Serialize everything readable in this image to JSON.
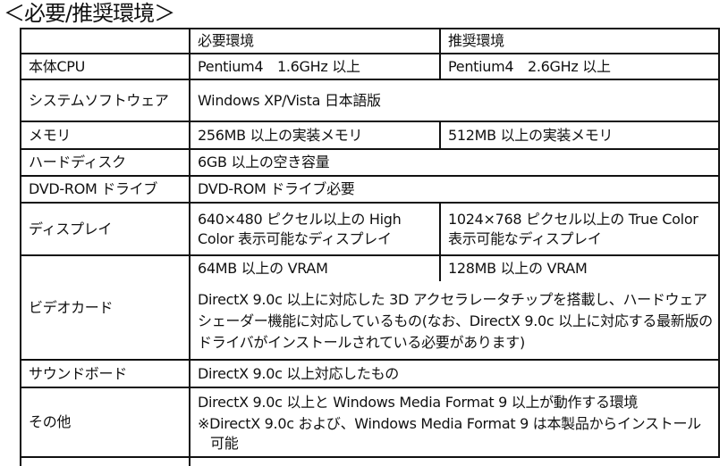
{
  "title": "＜必要/推奨環境＞",
  "headers": [
    "",
    "必要環境",
    "推奨環境"
  ],
  "rows": {
    "cpu": {
      "label": "本体CPU",
      "required": "Pentium4　1.6GHz 以上",
      "recommended": "Pentium4　2.6GHz 以上"
    },
    "os": {
      "label": "システムソフトウェア",
      "value": "Windows XP/Vista 日本語版"
    },
    "memory": {
      "label": "メモリ",
      "required": "256MB 以上の実装メモリ",
      "recommended": "512MB 以上の実装メモリ"
    },
    "hdd": {
      "label": "ハードディスク",
      "value": "6GB 以上の空き容量"
    },
    "dvd": {
      "label": "DVD-ROM ドライブ",
      "value": "DVD-ROM ドライブ必要"
    },
    "display": {
      "label": "ディスプレイ",
      "required": "640×480 ピクセル以上の High Color 表示可能なディスプレイ",
      "recommended": "1024×768 ピクセル以上の True Color 表示可能なディスプレイ"
    },
    "video": {
      "label": "ビデオカード",
      "required": "64MB 以上の VRAM",
      "recommended": "128MB 以上の VRAM",
      "note": "DirectX 9.0c 以上に対応した 3D アクセラレータチップを搭載し、ハードウェアシェーダー機能に対応しているもの(なお、DirectX 9.0c 以上に対応する最新版のドライバがインストールされている必要があります)"
    },
    "sound": {
      "label": "サウンドボード",
      "value": "DirectX 9.0c 以上対応したもの"
    },
    "other": {
      "label": "その他",
      "line1": "DirectX 9.0c 以上と Windows Media Format 9 以上が動作する環境",
      "line2": "※DirectX 9.0c および、Windows Media Format 9 は本製品からインストール可能"
    }
  }
}
